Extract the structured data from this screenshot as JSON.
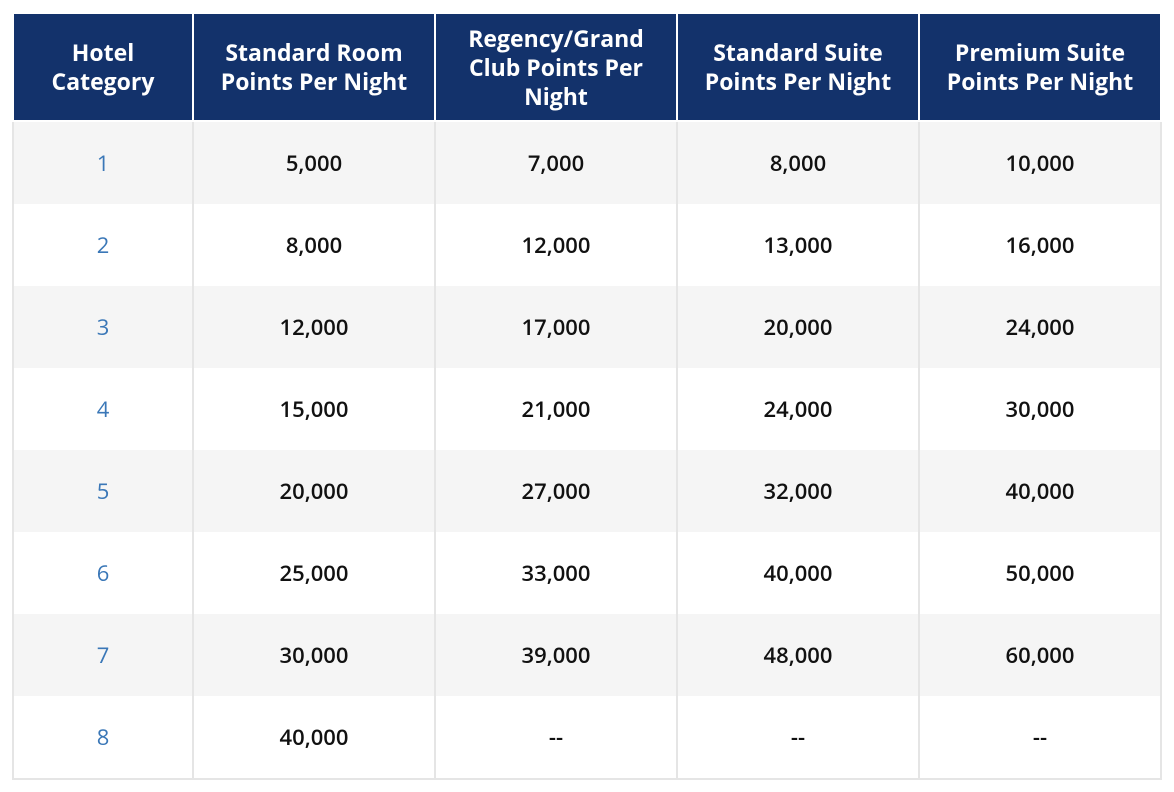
{
  "table": {
    "header_bg": "#13326b",
    "header_color": "#ffffff",
    "header_fontsize": "23px",
    "row_odd_bg": "#f5f5f5",
    "row_even_bg": "#ffffff",
    "cell_color": "#111111",
    "cell_fontsize": "22px",
    "link_color": "#3a77b7",
    "columns": [
      "Hotel Category",
      "Standard Room Points Per Night",
      "Regency/Grand Club Points Per Night",
      "Standard Suite Points Per Night",
      "Premium Suite Points Per Night"
    ],
    "col_widths": [
      "180px",
      "242px",
      "242px",
      "242px",
      "242px"
    ],
    "rows": [
      {
        "category": "1",
        "cells": [
          "5,000",
          "7,000",
          "8,000",
          "10,000"
        ]
      },
      {
        "category": "2",
        "cells": [
          "8,000",
          "12,000",
          "13,000",
          "16,000"
        ]
      },
      {
        "category": "3",
        "cells": [
          "12,000",
          "17,000",
          "20,000",
          "24,000"
        ]
      },
      {
        "category": "4",
        "cells": [
          "15,000",
          "21,000",
          "24,000",
          "30,000"
        ]
      },
      {
        "category": "5",
        "cells": [
          "20,000",
          "27,000",
          "32,000",
          "40,000"
        ]
      },
      {
        "category": "6",
        "cells": [
          "25,000",
          "33,000",
          "40,000",
          "50,000"
        ]
      },
      {
        "category": "7",
        "cells": [
          "30,000",
          "39,000",
          "48,000",
          "60,000"
        ]
      },
      {
        "category": "8",
        "cells": [
          "40,000",
          "--",
          "--",
          "--"
        ]
      }
    ]
  }
}
